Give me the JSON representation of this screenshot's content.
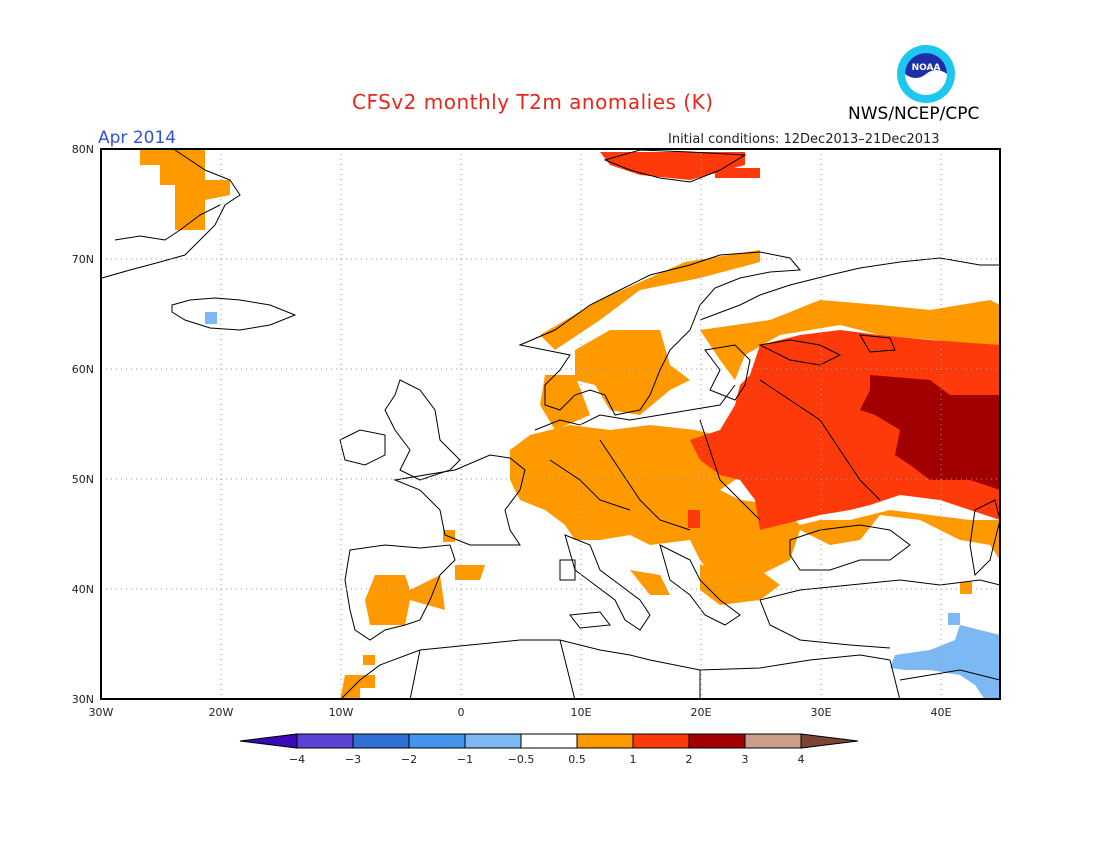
{
  "title": "CFSv2 monthly T2m anomalies (K)",
  "credit": "NWS/NCEP/CPC",
  "logo_text": "NOAA",
  "valid_month": "Apr 2014",
  "initial_conditions": "Initial conditions: 12Dec2013–21Dec2013",
  "map": {
    "lon_labels": [
      "30W",
      "20W",
      "10W",
      "0",
      "10E",
      "20E",
      "30E",
      "40E"
    ],
    "lat_labels": [
      "80N",
      "70N",
      "60N",
      "50N",
      "40N",
      "30N"
    ]
  },
  "colorbar": {
    "tick_labels": [
      "−4",
      "−3",
      "−2",
      "−1",
      "−0.5",
      "0.5",
      "1",
      "2",
      "3",
      "4"
    ],
    "colors": [
      "#3a0ab8",
      "#5a44d6",
      "#2f6fd6",
      "#4294ec",
      "#7cb8f4",
      "#ffffff",
      "#ff9900",
      "#ff3a0a",
      "#a20000",
      "#c99f8c",
      "#7a4436"
    ]
  }
}
